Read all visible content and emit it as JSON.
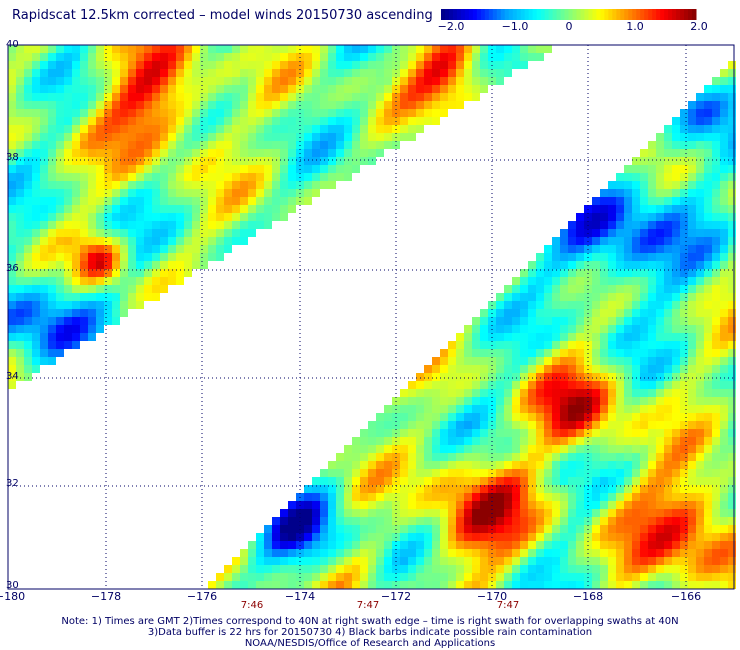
{
  "title": "Rapidscat 12.5km corrected – model winds 20150730 ascending",
  "colorbar": {
    "ticks": [
      "−2.0",
      "−1.0",
      "0",
      "1.0",
      "2.0"
    ],
    "colors": [
      "#00008b",
      "#0000ff",
      "#00a0ff",
      "#00ffff",
      "#80ff80",
      "#ffff00",
      "#ff8000",
      "#ff0000",
      "#8b0000"
    ]
  },
  "axes": {
    "lon_labels": [
      "−180",
      "−178",
      "−176",
      "−174",
      "−172",
      "−170",
      "−168",
      "−166"
    ],
    "lat_labels": [
      "40",
      "38",
      "36",
      "34",
      "32",
      "30"
    ],
    "lon_range": [
      -180,
      -165
    ],
    "lat_range": [
      30,
      40
    ]
  },
  "swath_times": [
    "7:46",
    "7:47",
    "7:47"
  ],
  "notes": {
    "line1": "Note: 1) Times are GMT 2)Times correspond to 40N at right swath edge – time is right swath for overlapping swaths at 40N",
    "line2": "3)Data buffer is 22 hrs for 20150730 4) Black barbs indicate possible rain contamination",
    "line3": "NOAA/NESDIS/Office of Research and Applications"
  }
}
